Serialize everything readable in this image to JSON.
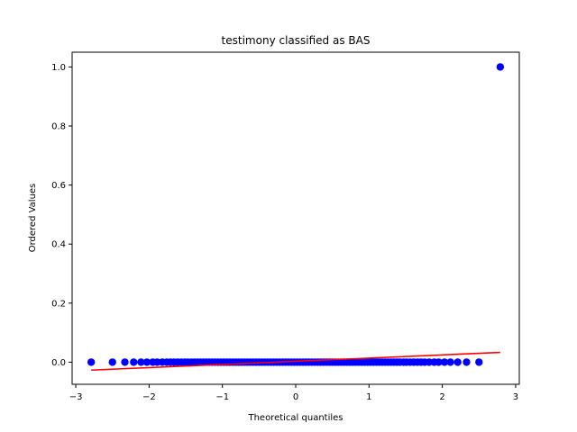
{
  "chart_data": {
    "type": "scatter",
    "title": "testimony classified as BAS",
    "xlabel": "Theoretical quantiles",
    "ylabel": "Ordered Values",
    "xlim": [
      -3.05,
      3.05
    ],
    "ylim": [
      -0.075,
      1.05
    ],
    "xticks": [
      -3,
      -2,
      -1,
      0,
      1,
      2,
      3
    ],
    "xtick_labels": [
      "−3",
      "−2",
      "−1",
      "0",
      "1",
      "2",
      "3"
    ],
    "yticks": [
      0.0,
      0.2,
      0.4,
      0.6,
      0.8,
      1.0
    ],
    "ytick_labels": [
      "0.0",
      "0.2",
      "0.4",
      "0.6",
      "0.8",
      "1.0"
    ],
    "grid": false,
    "colors": {
      "points": "#0000ff",
      "fit_line": "#ff0000",
      "axes": "#000000"
    },
    "points": {
      "x": [
        -2.79,
        -2.5,
        -2.33,
        -2.21,
        -2.11,
        -2.03,
        -1.95,
        -1.89,
        -1.82,
        -1.76,
        -1.71,
        -1.66,
        -1.61,
        -1.56,
        -1.51,
        -1.47,
        -1.42,
        -1.38,
        -1.34,
        -1.3,
        -1.26,
        -1.22,
        -1.18,
        -1.14,
        -1.1,
        -1.06,
        -1.02,
        -0.98,
        -0.94,
        -0.9,
        -0.86,
        -0.82,
        -0.78,
        -0.74,
        -0.7,
        -0.66,
        -0.62,
        -0.58,
        -0.54,
        -0.5,
        -0.46,
        -0.42,
        -0.38,
        -0.34,
        -0.3,
        -0.26,
        -0.22,
        -0.18,
        -0.14,
        -0.1,
        -0.06,
        -0.02,
        0.02,
        0.06,
        0.1,
        0.14,
        0.18,
        0.22,
        0.26,
        0.3,
        0.34,
        0.38,
        0.42,
        0.46,
        0.5,
        0.54,
        0.58,
        0.62,
        0.66,
        0.7,
        0.74,
        0.78,
        0.82,
        0.86,
        0.9,
        0.94,
        0.98,
        1.02,
        1.06,
        1.1,
        1.14,
        1.18,
        1.22,
        1.26,
        1.3,
        1.34,
        1.38,
        1.42,
        1.47,
        1.51,
        1.56,
        1.61,
        1.66,
        1.71,
        1.76,
        1.82,
        1.89,
        1.95,
        2.03,
        2.11,
        2.21,
        2.33,
        2.5,
        2.79
      ],
      "y": [
        0.0,
        0.0,
        0.0,
        0.0,
        0.0,
        0.0,
        0.0,
        0.0,
        0.0,
        0.0,
        0.0,
        0.0,
        0.0,
        0.0,
        0.0,
        0.0,
        0.0,
        0.0,
        0.0,
        0.0,
        0.0,
        0.0,
        0.0,
        0.0,
        0.0,
        0.0,
        0.0,
        0.0,
        0.0,
        0.0,
        0.0,
        0.0,
        0.0,
        0.0,
        0.0,
        0.0,
        0.0,
        0.0,
        0.0,
        0.0,
        0.0,
        0.0,
        0.0,
        0.0,
        0.0,
        0.0,
        0.0,
        0.0,
        0.0,
        0.0,
        0.0,
        0.0,
        0.0,
        0.0,
        0.0,
        0.0,
        0.0,
        0.0,
        0.0,
        0.0,
        0.0,
        0.0,
        0.0,
        0.0,
        0.0,
        0.0,
        0.0,
        0.0,
        0.0,
        0.0,
        0.0,
        0.0,
        0.0,
        0.0,
        0.0,
        0.0,
        0.0,
        0.0,
        0.0,
        0.0,
        0.0,
        0.0,
        0.0,
        0.0,
        0.0,
        0.0,
        0.0,
        0.0,
        0.0,
        0.0,
        0.0,
        0.0,
        0.0,
        0.0,
        0.0,
        0.0,
        0.0,
        0.0,
        0.0,
        0.0,
        0.0,
        0.0,
        0.0,
        1.0
      ]
    },
    "fit_line": {
      "x": [
        -2.79,
        2.79
      ],
      "y": [
        -0.027,
        0.033
      ]
    }
  }
}
